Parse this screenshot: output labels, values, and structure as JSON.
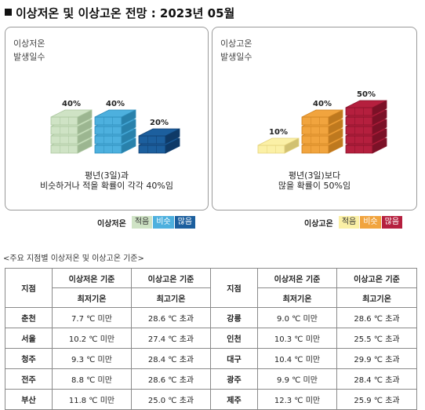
{
  "page_title": "이상저온 및 이상고온 전망 : 2023년 05월",
  "cold_panel": {
    "label_line1": "이상저온",
    "label_line2": "발생일수",
    "note_line1": "평년(3일)과",
    "note_line2": "비슷하거나 적을 확률이 각각 40%임",
    "legend_title": "이상저온",
    "legend": [
      {
        "label": "적음",
        "color": "#cfe3c5",
        "text_color": "#333333"
      },
      {
        "label": "비슷",
        "color": "#4db0de",
        "text_color": "#ffffff"
      },
      {
        "label": "많음",
        "color": "#1c5f9e",
        "text_color": "#ffffff"
      }
    ],
    "bars": [
      {
        "category": "적음",
        "probability": 40,
        "label": "40%",
        "color": "#cfe3c5",
        "dark": "#aac69e"
      },
      {
        "category": "비슷",
        "probability": 40,
        "label": "40%",
        "color": "#4db0de",
        "dark": "#2d8cba"
      },
      {
        "category": "많음",
        "probability": 20,
        "label": "20%",
        "color": "#1c5f9e",
        "dark": "#103f70"
      }
    ]
  },
  "hot_panel": {
    "label_line1": "이상고온",
    "label_line2": "발생일수",
    "note_line1": "평년(3일)보다",
    "note_line2": "많을 확률이 50%임",
    "legend_title": "이상고온",
    "legend": [
      {
        "label": "적음",
        "color": "#fbf0a6",
        "text_color": "#333333"
      },
      {
        "label": "비슷",
        "color": "#f1a43e",
        "text_color": "#ffffff"
      },
      {
        "label": "많음",
        "color": "#b51f3e",
        "text_color": "#ffffff"
      }
    ],
    "bars": [
      {
        "category": "적음",
        "probability": 10,
        "label": "10%",
        "color": "#fbf0a6",
        "dark": "#e3d27c"
      },
      {
        "category": "비슷",
        "probability": 40,
        "label": "40%",
        "color": "#f1a43e",
        "dark": "#cf8322"
      },
      {
        "category": "많음",
        "probability": 50,
        "label": "50%",
        "color": "#b51f3e",
        "dark": "#86122a"
      }
    ]
  },
  "table": {
    "caption": "<주요 지점별 이상저온 및 이상고온 기준>",
    "header_station": "지점",
    "header_cold": "이상저온 기준",
    "header_hot": "이상고온 기준",
    "sub_min": "최저기온",
    "sub_max": "최고기온",
    "rows": [
      {
        "left_station": "춘천",
        "left_min": "7.7 ℃ 미만",
        "left_max": "28.6 ℃ 초과",
        "right_station": "강릉",
        "right_min": "9.0 ℃ 미만",
        "right_max": "28.6 ℃ 초과"
      },
      {
        "left_station": "서울",
        "left_min": "10.2 ℃ 미만",
        "left_max": "27.4 ℃ 초과",
        "right_station": "인천",
        "right_min": "10.3 ℃ 미만",
        "right_max": "25.5 ℃ 초과"
      },
      {
        "left_station": "청주",
        "left_min": "9.3 ℃ 미만",
        "left_max": "28.4 ℃ 초과",
        "right_station": "대구",
        "right_min": "10.4 ℃ 미만",
        "right_max": "29.9 ℃ 초과"
      },
      {
        "left_station": "전주",
        "left_min": "8.8 ℃ 미만",
        "left_max": "28.6 ℃ 초과",
        "right_station": "광주",
        "right_min": "9.9 ℃ 미만",
        "right_max": "28.4 ℃ 초과"
      },
      {
        "left_station": "부산",
        "left_min": "11.8 ℃ 미만",
        "left_max": "25.0 ℃ 초과",
        "right_station": "제주",
        "right_min": "12.3 ℃ 미만",
        "right_max": "25.9 ℃ 초과"
      }
    ]
  }
}
